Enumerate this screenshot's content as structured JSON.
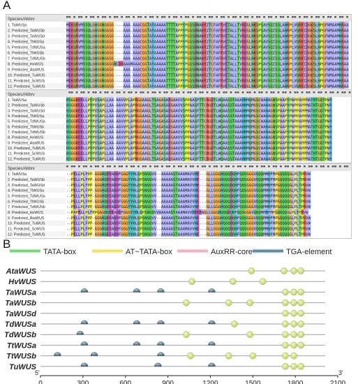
{
  "panel_a": {
    "letter": "A",
    "header_label": "Species/Abbrv",
    "blocks": [
      {
        "species": [
          "TaWUSa",
          "Predicted_TaWUSb",
          "Predicted_TaWUSd",
          "Predicted_TtWUSa",
          "Predicted_TdWUSa",
          "Predicted_TtWUSb",
          "Predicted_TdWUSb",
          "Predicted_HvWUS",
          "Predicted_AtaWUS",
          "Predicted_TuWUS",
          "Predicted_ScWUS",
          "Predicted_TuWUS"
        ],
        "sequences": [
          "MEKQRVMSSQLGHGGNGGGG----AAA-AAACGGTAYAAAAATTTTAPPYPGSSDNAKRITCFAFRVETALLTVREGLNKSPSAVSQISSLAHKPLVQRRIDGKSLNPGFWMAAMHRAA",
          "MEKQRVMSSQLGHGGNGGGG----AAA-AAACGGTAYAAAAATTTTAPPYPGSSDNAKRITCFAFRVETALLTVREGLNKSPSAVSQISSLAHKPLVQRRIDGKSLNPGFWMAAMHRAA",
          "MEKQRVMSSQLGHGGNGGGG----AAA-AAACGGTAYAAAAATTTTAPPYPGSSDNAKRITCFAFRVETALLTVREGLNKSPSAVSQISSLAHKPLVQRRIDGKSLNPGFWMAAMHRAA",
          "MEKQRVMSSQLGHGGNGGGG----AAA-AAACGGTAYAAAAATTTTAPPYPGSSDNAKRITCFAFRVETALLTVREGLNKSPSAVSQISSLAHKPLVQRRIDGKSLNPGFWMAAMHRAA",
          "MEKQRVMSSQLGHGGNGGGG----AAA-AAACGGTAYAAAAATTTTAPPYPGSSDNAKRITCFAFRVETALLTVREGLNKSPSAVSQISSLAHKPLVQRRIDGKSLNPGFWMAAMHRAA",
          "MEKQRVMSSQLGHGGNGGGG----AAA-AAACGGTAYAAAAATTTTAPPYPGSSDNAKRITCFAFRVETALLTVREGLNKSPSAVSQISSLAHKPLVQRRIDGKSLNPGFWMAAMHRAA",
          "MEKQRVMSSQLGHGGNGGGG----AAA-AAACGGTAYAAAAATTTTAPPYPGSSDNAKRITCFAFRVETALLTVREGLNKSPSAVSQISSLAHKPLVQRRIDGKSLNPGFWMAAMHRAA",
          "MEKQRVMSSQLGHGGNGGGGHCDRAAAMAAACGGTAYAAAAATTTTAPPYPGSSDNAKRITCFAFRVETALLTVREGLNKSPSAVSQISSLAHKPLVQRRIDGKSLNPGFWMAAMHRAA",
          "MEKQRVMSSQLGHGGNGGGG----AAA-AAACGGTAYAAAAATTTTAPPYPGSSDNAKRITCFAFRVETALLTVREGLNKSPSAVSQISSLAHKPLVQRRIDGKSLNPGFWMAAMHRAA",
          "MEKQRVMSSQLGHGGNGGGG----AAA-AAACGGTAYAAAAATTTTAPPYPGSSDNAKRITCFAFRVETALLTVREGLNKSPSAVSQISSLAHKPLVQRRIDGKSLNPGFWMAAMHRAA",
          "MEKQRVMSSQLGHGGNGGGG----AAA-AAACGGTAYAAAAATTTTAPPYPGSSDNAKRITCFAFRVETALLTVREGLNKSPSAVSQISSLAHKPLVQRRIDGKSLNPGFWMAAMHRAA",
          "MEKQRVMSSQLGHGGNGGGG----AAA-AAACGGTAYAAAAATTTTAPPYPGSSDNAKRITCFAFRVETALLTVREGLNKSPSAVSQISSLAHKPLVQRRIDGKSLNPGFWMAAMHRAA"
        ]
      },
      {
        "species": [
          "TaWUSa",
          "Predicted_TaWUSb",
          "Predicted_TaWUSd",
          "Predicted_TtWUSa",
          "Predicted_TdWUSa",
          "Predicted_TtWUSb",
          "Predicted_TdWUSb",
          "Predicted_HvWUS",
          "Predicted_AtaWUS",
          "Predicted_TuWUS",
          "Predicted_ScWUS",
          "Predicted_TuWUS"
        ],
        "sequences": [
          "HSGGKEELLPYPVSAPLLAA-AAVVPLAPRGGAAGLTSAGASAEGAAVVSPPAASFTTCRGDTLWQAASSTAAAHHMQMGSCWAHAGNSPAAPYPWPPAPPMATHTGQTPWY",
          "HSGGKEELLPYPVSAPLLAA-AAVVPLAPRGGAAGLTSAGASAEGAAVVSPPAASFTTCRGDTLWQAASSTAAAHHMQMGSCWAHAGNSPAAPYPWPPAPPMATHTGQTPWY",
          "HSGGKEELLPYPVSAPLLAA-AAVVPLAPRGGAAGLTSAGASAEGAAVVSPPAASFTTCRGDTLWQAASSTAAAHHMQMGSCWAHAGNSPAAPYPWPPAPPMATHTGQTPWY",
          "HSGGKEELLPYPVSAPLLAA-AAVVPLAPRGGAAGLTSAGASAEGAAVVSPPAASFTTCRGDTLWQAASSTAAAHHMQMGSCWAHAGNSPAAPYPWPPAPPMATHTGQTPWY",
          "HSGGKEELLPYPVSAPLLAA-AAVVPLAPRGGAAGLTSAGASAEGAAVVSPPAASFTTCRGDTLWQAASSTAAAHHMQMGSCWAHAGNSPAAPYPWPPAPPMATHTGQTPWY",
          "HSGGKEELLPYPVSAPLLAA-AAVVPLAPRGGAAGLTSAGASAEGAAVVSPPAASFTTCRGDTLWQAASSTAAAHHMQMGSCWAHAGNSPAAPYPWPPAPPMATHTGQTPWY",
          "HSGGKEELLPYPVSAPLLAA-AAVVPLAPRGGAAGLTSAGASAEGAAVVSPPAASFTTCRGDTLWQAASSTAAAHHMQMGSCWAHAGNSPAAPYPWPPAPPMATHTGQTPWY",
          "HSGGKEELLPYPVSAPLLAA-AAVVPLAPRGGAAGLTSAGASAEGAAVVSPPAASFTTCRGDTLWQAASSTAAAHHMQMGSCWAHAGNSPAAPYPWPPAPPMATHTGQTPWY",
          "HSGGKEELLPYPVSAPLLAA-AAVVPLAPRGGAAGLTSAGASAEGAAVVSPPAASFTTCRGDTLWQAASSTAAAHHMQMGSCWAHAGNSPAAPYPWPPAPPMATHTGQTPWY",
          "HSGGKEELLPYPVSAPLLAA-AAVVPLAPRGGAAGLTSAGASAEGAAVVSPPAASFTTCRGDTLWQAASSTAAAHHMQMGSCWAHAGNSPAAPYPWPPAPPMATHTGQTPWY",
          "HSGGKEELLPYPVSAPLLAA-AAVVPLAPRGGAAGLTSAGASAEGAAVVSPPAASFTTCRGDTLWQAASSTAAAHHMQMGSCWAHAGNSPAAPYPWPPAPPMATHTGQTPWY",
          "HSGGKEELLPYPVSAPLLAA-AAVVPLAPRGGAAGLTSAGASAEGAAVVSPPAASFTTCRGDTLWQAASSTAAAHHMQMGSCWAHAGNSPAAPYPWPPAPPMATHTGQTPWY"
        ]
      },
      {
        "species": [
          "TaWUSa",
          "Predicted_TaWUSb",
          "Predicted_TaWUSd",
          "Predicted_TtWUSa",
          "Predicted_TdWUSa",
          "Predicted_TtWUSb",
          "Predicted_TdWUSb",
          "Predicted_HvWUS",
          "Predicted_AtaWUS",
          "Predicted_TuWUS",
          "Predicted_ScWUS",
          "Predicted_TuWUS"
        ],
        "sequences": [
          "--PELLPLFPP-GGGHQEEADDFGGGYYHLQPSNSQVV--AAAAASTAAAMAVVHE---GLLGGGHQQQDQHFQQSGGGVQQQMMHFMPGQQQQGLPLTPRVW",
          "--PELLPLFPP-GGGHQEEADDFGGGYYHLQPSNSQVV--AAAAASTAAAMAVVHE---GLLGGGHQQQDQHFQQSGGGVQQQMMHFMPGQQQQGLPLTPRVW",
          "--PELLPLFPP-GGGHQEEADDFGGGYYHLQPSNSQVV--AAAAASTAAAMAVVHE---GLLGGGHQQQDQHFQQSGGGVQQQMMHFMPGQQQQGLPLTPRVW",
          "--PELLPLFPP-GGGHQEEADDFGGGYYHLQPSNSQVV--AAAAASTAAAMAVVHE---GLLGGGHQQQDQHFQQSGGGVQQQMMHFMPGQQQQGLPLTPRVW",
          "--PELLPLFPP-GGGHQEEADDFGGGYYHLQPSNSQVV--AAAAASTAAAMAVVHE---GLLGGGHQQQDQHFQQSGGGVQQQMMHFMPGQQQQGLPLTPRVW",
          "--PELLPLFPP-GGGHQEEADDFGGGYYHLQPSNSQVV--AAAAASTAAAMAVVHE---GLLGGGHQQQDQHFQQSGGGVQQQMMHFMPGQQQQGLPLTPRVW",
          "--PELLPLFPP-GGGHQEEADDFGGGYYHLQPSNSQVV--AAAAASTAAAMAVVHE---GLLGGGHQQQDQHFQQSGGGVQQQMMHFMPGQQQQGLPLTPRVW",
          "--PAPELLPLFPPGGGHQEEADDFGGGYYHLQPSNSQVVAAAAASTAAAMAVVHEEEAGLLGGGHQQQDQHFQQSGGGVQQQMMHFMPGQQQQGLPLTPRVW",
          "--PELLPLFPP-GGGHQEEADDFGGGYYHLQPSNSQVV--AAAAASTAAAMAVVHE---GLLGGGHQQQDQHFQQSGGGVQQQMMHFMPGQQQQGLPLTPRVW",
          "--PELLPLFPP-GGGHQEEADDFGGGYYHLQPSNSQVV--AAAAASTAAAMAVVHE---GLLGGGHQQQDQHFQQSGGGVQQQMMHFMPGQQQQGLPLTPRVW",
          "--PELLPLFPP-GGGHQEEADDFGGGYYHLQPSNSQVV--AAAAASTAAAMAVVHE---GLLGGGHQQQDQHFQQSGGGVQQQMMHFMPGQQQQGLPLTPRVW",
          "--PELLPLFPP-GGGHQEEADDFGGGYYHLQPSNSQVV--AAAAASTAAAMAVVHE---GLLGGGHQQQDQHFQQSGGGVQQQMMHFMPGQQQQGLPLTPRVW"
        ]
      }
    ]
  },
  "panel_b": {
    "letter": "B",
    "legend": [
      {
        "label": "TATA-box",
        "color": "#5cc85c",
        "kind": "bar"
      },
      {
        "label": "AT~TATA-box",
        "color": "#f0d840",
        "kind": "bar"
      },
      {
        "label": "AuxRR-core",
        "color": "#e8a0b0",
        "kind": "bar"
      },
      {
        "label": "TGA-element",
        "color": "#3c6e80",
        "kind": "bar"
      }
    ],
    "axis": {
      "min": 0,
      "max": 2100,
      "ticks": [
        0,
        300,
        600,
        900,
        1200,
        1500,
        1800,
        2100
      ],
      "start_label": "5'",
      "end_label": "3'"
    },
    "genes": [
      {
        "name": "AtaWUS",
        "tga": [],
        "tata": [
          1490,
          1720,
          1790,
          1840
        ]
      },
      {
        "name": "HvWUS",
        "tga": [],
        "tata": [
          1070,
          1360,
          1570
        ]
      },
      {
        "name": "TaWUSa",
        "tga": [
          310,
          680,
          850,
          1210
        ],
        "tata": [
          1730,
          1790,
          1840
        ]
      },
      {
        "name": "TaWUSb",
        "tga": [],
        "tata": [
          1030,
          1330,
          1480,
          1730,
          1790,
          1840
        ]
      },
      {
        "name": "TaWUSd",
        "tga": [],
        "tata": [
          1730,
          1790,
          1840
        ]
      },
      {
        "name": "TdWUSa",
        "tga": [
          310,
          680,
          850,
          1210
        ],
        "tata": [
          1370,
          1730,
          1790,
          1840
        ]
      },
      {
        "name": "TdWUSb",
        "tga": [
          280
        ],
        "tata": [
          1030,
          1480,
          1730,
          1790,
          1840
        ]
      },
      {
        "name": "TtWUSa",
        "tga": [
          310,
          680,
          850,
          1210
        ],
        "tata": [
          1730,
          1790,
          1840
        ]
      },
      {
        "name": "TtWUSb",
        "tga": [
          120,
          380,
          850
        ],
        "tata": [
          1060,
          1330,
          1500,
          1730,
          1790
        ]
      },
      {
        "name": "TuWUS",
        "tga": [
          310,
          830,
          1210
        ],
        "tata": [
          1730,
          1790,
          1840
        ]
      }
    ]
  }
}
